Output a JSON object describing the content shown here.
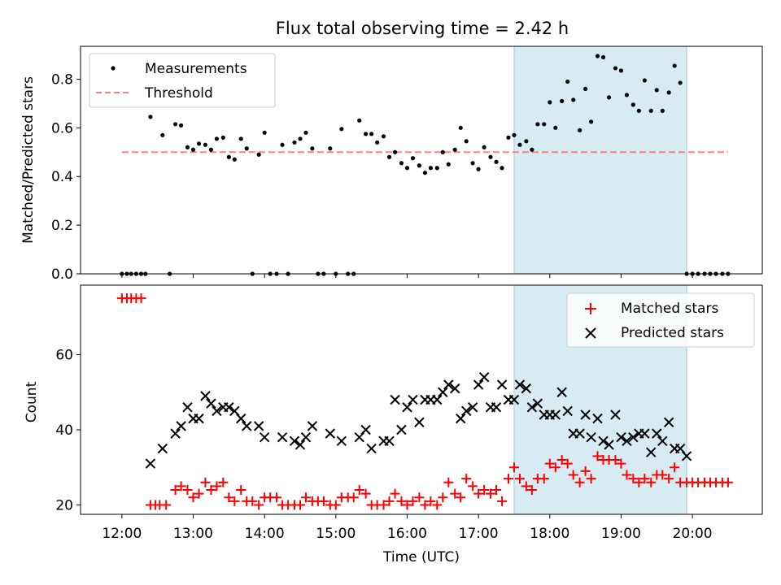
{
  "chart_data": [
    {
      "type": "scatter",
      "title": "Flux total observing time = 2.42 h",
      "xlabel": "",
      "ylabel": "Matched/Predicted stars",
      "xlim": [
        11.42,
        20.98
      ],
      "ylim": [
        0.0,
        0.935
      ],
      "yticks": [
        0.0,
        0.2,
        0.4,
        0.6,
        0.8
      ],
      "ytick_labels": [
        "0.0",
        "0.2",
        "0.4",
        "0.6",
        "0.8"
      ],
      "shaded_span": [
        17.5,
        19.92
      ],
      "threshold": {
        "name": "Threshold",
        "value": 0.5,
        "x_range": [
          12.0,
          20.5
        ],
        "color": "#ff7f7f"
      },
      "legend_position": "top-left",
      "series": [
        {
          "name": "Measurements",
          "color": "#000000",
          "x": [
            12.0,
            12.07,
            12.13,
            12.2,
            12.27,
            12.33,
            12.4,
            12.57,
            12.67,
            12.75,
            12.83,
            12.92,
            13.0,
            13.08,
            13.17,
            13.25,
            13.33,
            13.42,
            13.5,
            13.58,
            13.67,
            13.75,
            13.83,
            13.92,
            14.0,
            14.08,
            14.17,
            14.25,
            14.33,
            14.42,
            14.5,
            14.58,
            14.67,
            14.75,
            14.83,
            14.92,
            15.0,
            15.08,
            15.17,
            15.25,
            15.33,
            15.42,
            15.5,
            15.58,
            15.67,
            15.75,
            15.83,
            15.92,
            16.0,
            16.08,
            16.17,
            16.25,
            16.33,
            16.42,
            16.5,
            16.58,
            16.67,
            16.75,
            16.83,
            16.92,
            17.0,
            17.08,
            17.17,
            17.25,
            17.33,
            17.42,
            17.5,
            17.58,
            17.67,
            17.75,
            17.83,
            17.92,
            18.0,
            18.08,
            18.17,
            18.25,
            18.33,
            18.42,
            18.5,
            18.58,
            18.67,
            18.75,
            18.83,
            18.92,
            19.0,
            19.08,
            19.17,
            19.25,
            19.33,
            19.42,
            19.5,
            19.58,
            19.67,
            19.75,
            19.83,
            19.92,
            20.0,
            20.08,
            20.17,
            20.25,
            20.33,
            20.42,
            20.5
          ],
          "y": [
            0,
            0,
            0,
            0,
            0,
            0,
            0.645,
            0.57,
            0,
            0.615,
            0.61,
            0.52,
            0.51,
            0.535,
            0.53,
            0.51,
            0.555,
            0.56,
            0.48,
            0.47,
            0.555,
            0.515,
            0,
            0.49,
            0.58,
            0,
            0,
            0.53,
            0,
            0.54,
            0.555,
            0.58,
            0.515,
            0,
            0,
            0.515,
            0,
            0.595,
            0,
            0,
            0.63,
            0.575,
            0.575,
            0.54,
            0.565,
            0.48,
            0.5,
            0.455,
            0.435,
            0.475,
            0.445,
            0.415,
            0.435,
            0.435,
            0.5,
            0.45,
            0.51,
            0.6,
            0.545,
            0.455,
            0.43,
            0.52,
            0.48,
            0.46,
            0.435,
            0.56,
            0.57,
            0.53,
            0.545,
            0.51,
            0.615,
            0.615,
            0.705,
            0.6,
            0.71,
            0.79,
            0.715,
            0.59,
            0.76,
            0.625,
            0.895,
            0.89,
            0.725,
            0.845,
            0.835,
            0.735,
            0.695,
            0.67,
            0.795,
            0.67,
            0.755,
            0.67,
            0.745,
            0.855,
            0.785,
            0,
            0,
            0,
            0,
            0,
            0,
            0,
            0
          ]
        }
      ]
    },
    {
      "type": "scatter",
      "title": "",
      "xlabel": "Time (UTC)",
      "ylabel": "Count",
      "xlim": [
        11.42,
        20.98
      ],
      "ylim": [
        17.5,
        78.5
      ],
      "yticks": [
        20,
        40,
        60
      ],
      "ytick_labels": [
        "20",
        "40",
        "60"
      ],
      "xticks": [
        12,
        13,
        14,
        15,
        16,
        17,
        18,
        19,
        20
      ],
      "xtick_labels": [
        "12:00",
        "13:00",
        "14:00",
        "15:00",
        "16:00",
        "17:00",
        "18:00",
        "19:00",
        "20:00"
      ],
      "shaded_span": [
        17.5,
        19.92
      ],
      "legend_position": "top-right",
      "series": [
        {
          "name": "Matched stars",
          "color": "#ff0000",
          "marker": "plus",
          "x": [
            12.0,
            12.07,
            12.13,
            12.2,
            12.27,
            12.4,
            12.47,
            12.53,
            12.62,
            12.75,
            12.83,
            12.92,
            13.0,
            13.08,
            13.17,
            13.25,
            13.33,
            13.42,
            13.5,
            13.58,
            13.67,
            13.75,
            13.83,
            13.92,
            14.0,
            14.08,
            14.17,
            14.25,
            14.33,
            14.42,
            14.5,
            14.58,
            14.67,
            14.75,
            14.83,
            14.92,
            15.0,
            15.08,
            15.17,
            15.25,
            15.33,
            15.42,
            15.5,
            15.58,
            15.67,
            15.75,
            15.83,
            15.92,
            16.0,
            16.08,
            16.17,
            16.25,
            16.33,
            16.42,
            16.5,
            16.58,
            16.67,
            16.75,
            16.83,
            16.92,
            17.0,
            17.08,
            17.17,
            17.25,
            17.33,
            17.42,
            17.5,
            17.58,
            17.67,
            17.75,
            17.83,
            17.92,
            18.0,
            18.08,
            18.17,
            18.25,
            18.33,
            18.42,
            18.5,
            18.58,
            18.67,
            18.75,
            18.83,
            18.92,
            19.0,
            19.08,
            19.17,
            19.25,
            19.33,
            19.42,
            19.5,
            19.58,
            19.67,
            19.75,
            19.83,
            19.92,
            20.0,
            20.08,
            20.17,
            20.25,
            20.33,
            20.42,
            20.5
          ],
          "y": [
            75,
            75,
            75,
            75,
            75,
            20,
            20,
            20,
            20,
            24,
            25,
            24,
            22,
            23,
            26,
            24,
            25,
            26,
            22,
            21,
            24,
            21,
            21,
            20,
            22,
            22,
            22,
            20,
            20,
            20,
            20,
            22,
            21,
            21,
            21,
            20,
            20,
            22,
            22,
            22,
            24,
            23,
            20,
            20,
            20,
            21,
            23,
            21,
            20,
            21,
            22,
            20,
            21,
            20,
            22,
            26,
            23,
            22,
            27,
            25,
            23,
            24,
            23,
            24,
            21,
            27,
            30,
            27,
            25,
            24,
            27,
            27,
            31,
            30,
            32,
            31,
            28,
            26,
            29,
            27,
            33,
            32,
            32,
            32,
            31,
            28,
            27,
            26,
            27,
            26,
            28,
            28,
            27,
            30,
            26,
            26,
            26,
            26,
            26,
            26,
            26,
            26,
            26
          ]
        },
        {
          "name": "Predicted stars",
          "color": "#000000",
          "marker": "x",
          "x": [
            12.4,
            12.57,
            12.75,
            12.83,
            12.92,
            13.0,
            13.08,
            13.17,
            13.25,
            13.33,
            13.42,
            13.5,
            13.58,
            13.67,
            13.75,
            13.92,
            14.0,
            14.25,
            14.42,
            14.5,
            14.58,
            14.67,
            14.92,
            15.08,
            15.33,
            15.42,
            15.5,
            15.67,
            15.75,
            15.83,
            15.92,
            16.0,
            16.08,
            16.17,
            16.25,
            16.33,
            16.42,
            16.5,
            16.58,
            16.67,
            16.75,
            16.83,
            16.92,
            17.0,
            17.08,
            17.17,
            17.25,
            17.33,
            17.42,
            17.5,
            17.58,
            17.67,
            17.75,
            17.83,
            17.92,
            18.0,
            18.08,
            18.17,
            18.25,
            18.33,
            18.42,
            18.5,
            18.58,
            18.67,
            18.75,
            18.83,
            18.92,
            19.0,
            19.08,
            19.17,
            19.25,
            19.33,
            19.42,
            19.5,
            19.58,
            19.67,
            19.75,
            19.83,
            19.92
          ],
          "y": [
            31,
            35,
            39,
            41,
            46,
            43,
            43,
            49,
            47,
            45,
            46,
            46,
            45,
            43,
            41,
            41,
            38,
            38,
            37,
            36,
            38,
            41,
            39,
            37,
            38,
            40,
            35,
            37,
            37,
            48,
            40,
            46,
            48,
            42,
            48,
            48,
            48,
            50,
            52,
            51,
            43,
            45,
            46,
            52,
            54,
            46,
            46,
            52,
            48,
            48,
            52,
            51,
            46,
            47,
            44,
            44,
            44,
            50,
            45,
            39,
            39,
            44,
            38,
            43,
            37,
            36,
            44,
            38,
            37,
            38,
            39,
            39,
            34,
            39,
            37,
            42,
            35,
            35,
            33
          ]
        }
      ]
    }
  ]
}
